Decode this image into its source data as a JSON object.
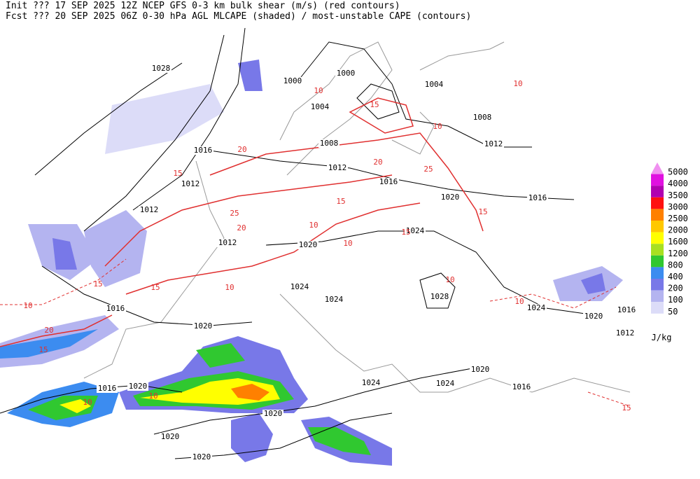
{
  "header": {
    "line1": "Init  ??? 17 SEP 2025 12Z  NCEP GFS 0-3 km bulk shear (m/s) (red contours)",
    "line2": "Fcst ??? 20 SEP 2025 06Z  0-30 hPa AGL MLCAPE (shaded) / most-unstable CAPE (contours)"
  },
  "isobar_labels": [
    "1028",
    "1000",
    "1000",
    "1004",
    "1004",
    "1008",
    "1008",
    "1012",
    "1016",
    "1012",
    "1016",
    "1012",
    "1020",
    "1016",
    "1012",
    "1024",
    "1012",
    "1020",
    "1024",
    "1028",
    "1024",
    "1016",
    "1024",
    "1020",
    "1016",
    "1012",
    "1020",
    "1020",
    "1024",
    "1024",
    "1016",
    "1016",
    "1020",
    "1020",
    "1020",
    "1020"
  ],
  "shear_labels": [
    "10",
    "15",
    "10",
    "20",
    "15",
    "10",
    "20",
    "15",
    "10",
    "10",
    "25",
    "20",
    "15",
    "10",
    "15",
    "10",
    "15",
    "15",
    "15",
    "10",
    "10",
    "15",
    "10",
    "25",
    "20",
    "10"
  ],
  "legend": {
    "items": [
      {
        "label": "5000",
        "color": "#f090f0"
      },
      {
        "label": "4000",
        "color": "#e010e0"
      },
      {
        "label": "3500",
        "color": "#b000b0"
      },
      {
        "label": "3000",
        "color": "#ff1010"
      },
      {
        "label": "2500",
        "color": "#ff8000"
      },
      {
        "label": "2000",
        "color": "#ffc800"
      },
      {
        "label": "1600",
        "color": "#ffff00"
      },
      {
        "label": "1200",
        "color": "#a8e020"
      },
      {
        "label": "800",
        "color": "#30c830"
      },
      {
        "label": "400",
        "color": "#3c8cf0"
      },
      {
        "label": "200",
        "color": "#7878e8"
      },
      {
        "label": "100",
        "color": "#b4b4f0"
      },
      {
        "label": "50",
        "color": "#dcdcf8"
      }
    ],
    "unit": "J/kg"
  }
}
